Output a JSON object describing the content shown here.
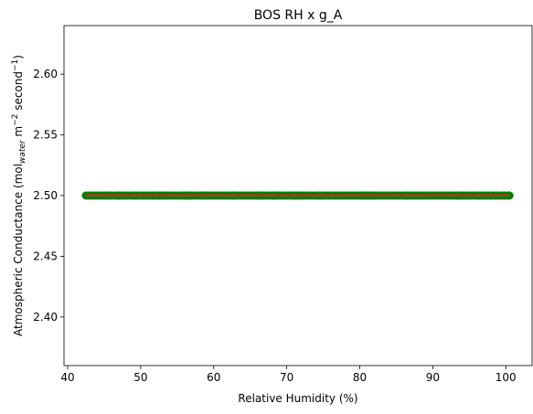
{
  "chart_data": {
    "type": "scatter",
    "title": "BOS RH x g_A",
    "xlabel": "Relative Humidity (%)",
    "ylabel": {
      "prefix": "Atmospheric Conductance (mol",
      "subscript": "water",
      "middle": " m",
      "sup1": "−2",
      "middle2": " second",
      "sup2": "−1",
      "suffix": ")"
    },
    "xlim": [
      39.5,
      103.6
    ],
    "ylim": [
      2.36,
      2.64
    ],
    "xticks": [
      40,
      50,
      60,
      70,
      80,
      90,
      100
    ],
    "yticks": [
      2.4,
      2.45,
      2.5,
      2.55,
      2.6
    ],
    "ytick_labels": [
      "2.40",
      "2.45",
      "2.50",
      "2.55",
      "2.60"
    ],
    "grid": false,
    "series": [
      {
        "marker": "circle",
        "color": "#008000",
        "x_range": [
          42.5,
          100.5
        ],
        "y": 2.5
      },
      {
        "marker": "line",
        "color": "#d62728",
        "x_range": [
          42.5,
          100.5
        ],
        "y": 2.5
      }
    ]
  }
}
